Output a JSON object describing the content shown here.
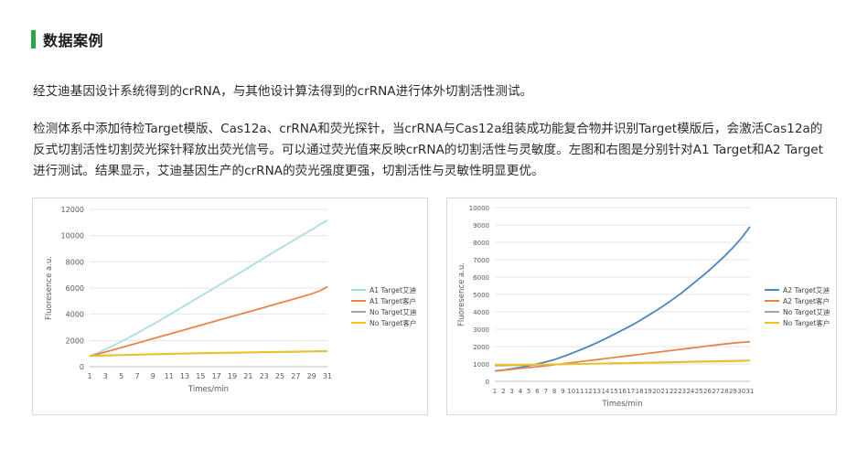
{
  "section": {
    "title": "数据案例"
  },
  "paragraphs": [
    "经艾迪基因设计系统得到的crRNA，与其他设计算法得到的crRNA进行体外切割活性测试。",
    "检测体系中添加待检Target模版、Cas12a、crRNA和荧光探针，当crRNA与Cas12a组装成功能复合物并识别Target模版后，会激活Cas12a的反式切割活性切割荧光探针释放出荧光信号。可以通过荧光值来反映crRNA的切割活性与灵敏度。左图和右图是分别针对A1 Target和A2 Target进行测试。结果显示，艾迪基因生产的crRNA的荧光强度更强，切割活性与灵敏性明显更优。"
  ],
  "colors": {
    "accent": "#2aa54a",
    "series1_left": "#a8dde1",
    "series1_right": "#4a86bf",
    "series2": "#e8844a",
    "series3": "#a5a5a5",
    "series4": "#f2c417"
  },
  "chart_data": [
    {
      "type": "line",
      "xlabel": "Times/min",
      "ylabel": "Fluoresence a.u.",
      "x": [
        1,
        2,
        3,
        4,
        5,
        6,
        7,
        8,
        9,
        10,
        11,
        12,
        13,
        14,
        15,
        16,
        17,
        18,
        19,
        20,
        21,
        22,
        23,
        24,
        25,
        26,
        27,
        28,
        29,
        30,
        31
      ],
      "xticks": [
        "1",
        "3",
        "5",
        "7",
        "9",
        "11",
        "13",
        "15",
        "17",
        "19",
        "21",
        "23",
        "25",
        "27",
        "29",
        "31"
      ],
      "ylim": [
        0,
        12000
      ],
      "yticks": [
        "0",
        "2000",
        "4000",
        "6000",
        "8000",
        "10000",
        "12000"
      ],
      "grid": true,
      "legend": "right",
      "series": [
        {
          "name": "A1 Target艾迪",
          "color": "#a8dde1",
          "values": [
            800,
            1050,
            1320,
            1620,
            1920,
            2230,
            2560,
            2900,
            3240,
            3580,
            3940,
            4300,
            4660,
            5020,
            5380,
            5740,
            6100,
            6460,
            6820,
            7180,
            7550,
            7920,
            8290,
            8660,
            9020,
            9380,
            9740,
            10100,
            10460,
            10820,
            11180
          ]
        },
        {
          "name": "A1 Target客户",
          "color": "#e8844a",
          "values": [
            800,
            960,
            1120,
            1290,
            1460,
            1630,
            1800,
            1970,
            2140,
            2310,
            2480,
            2650,
            2820,
            2990,
            3160,
            3330,
            3500,
            3670,
            3840,
            4010,
            4180,
            4350,
            4520,
            4690,
            4860,
            5030,
            5200,
            5380,
            5560,
            5780,
            6100
          ]
        },
        {
          "name": "No Target艾迪",
          "color": "#a5a5a5",
          "values": [
            820,
            835,
            850,
            865,
            880,
            895,
            910,
            925,
            940,
            955,
            970,
            985,
            1000,
            1010,
            1020,
            1030,
            1040,
            1050,
            1060,
            1070,
            1080,
            1090,
            1100,
            1110,
            1120,
            1130,
            1140,
            1150,
            1160,
            1170,
            1180
          ]
        },
        {
          "name": "No Target客户",
          "color": "#f2c417",
          "values": [
            840,
            855,
            870,
            885,
            900,
            915,
            930,
            945,
            960,
            975,
            990,
            1005,
            1020,
            1030,
            1040,
            1050,
            1060,
            1070,
            1080,
            1090,
            1100,
            1110,
            1120,
            1130,
            1140,
            1150,
            1160,
            1170,
            1180,
            1190,
            1200
          ]
        }
      ]
    },
    {
      "type": "line",
      "xlabel": "Times/min",
      "ylabel": "Fluoresence a.u.",
      "x": [
        1,
        2,
        3,
        4,
        5,
        6,
        7,
        8,
        9,
        10,
        11,
        12,
        13,
        14,
        15,
        16,
        17,
        18,
        19,
        20,
        21,
        22,
        23,
        24,
        25,
        26,
        27,
        28,
        29,
        30,
        31
      ],
      "xticks": [
        "1",
        "2",
        "3",
        "4",
        "5",
        "6",
        "7",
        "8",
        "9",
        "10",
        "11",
        "12",
        "13",
        "14",
        "15",
        "16",
        "17",
        "18",
        "19",
        "20",
        "21",
        "22",
        "23",
        "24",
        "25",
        "26",
        "27",
        "28",
        "29",
        "30",
        "31"
      ],
      "ylim": [
        0,
        10000
      ],
      "yticks": [
        "0",
        "1000",
        "2000",
        "3000",
        "4000",
        "5000",
        "6000",
        "7000",
        "8000",
        "9000",
        "10000"
      ],
      "grid": true,
      "legend": "right",
      "series": [
        {
          "name": "A2 Target艾迪",
          "color": "#4a86bf",
          "values": [
            600,
            650,
            720,
            800,
            900,
            1000,
            1120,
            1250,
            1420,
            1600,
            1800,
            2000,
            2220,
            2450,
            2700,
            2950,
            3200,
            3480,
            3780,
            4080,
            4400,
            4750,
            5100,
            5500,
            5900,
            6300,
            6750,
            7200,
            7700,
            8250,
            8900
          ]
        },
        {
          "name": "A2 Target客户",
          "color": "#e8844a",
          "values": [
            600,
            640,
            690,
            740,
            790,
            840,
            890,
            950,
            1010,
            1070,
            1130,
            1190,
            1250,
            1310,
            1370,
            1430,
            1490,
            1550,
            1610,
            1670,
            1730,
            1790,
            1850,
            1910,
            1970,
            2030,
            2090,
            2150,
            2200,
            2240,
            2280
          ]
        },
        {
          "name": "No Target艾迪",
          "color": "#a5a5a5",
          "values": [
            900,
            910,
            920,
            930,
            940,
            950,
            960,
            970,
            980,
            990,
            1000,
            1010,
            1020,
            1030,
            1040,
            1050,
            1060,
            1070,
            1080,
            1090,
            1100,
            1110,
            1120,
            1130,
            1140,
            1150,
            1160,
            1170,
            1180,
            1190,
            1200
          ]
        },
        {
          "name": "No Target客户",
          "color": "#f2c417",
          "values": [
            950,
            955,
            960,
            965,
            970,
            975,
            980,
            985,
            990,
            995,
            1000,
            1005,
            1010,
            1015,
            1020,
            1030,
            1040,
            1050,
            1060,
            1070,
            1080,
            1090,
            1100,
            1110,
            1120,
            1130,
            1140,
            1150,
            1160,
            1170,
            1190
          ]
        }
      ]
    }
  ]
}
